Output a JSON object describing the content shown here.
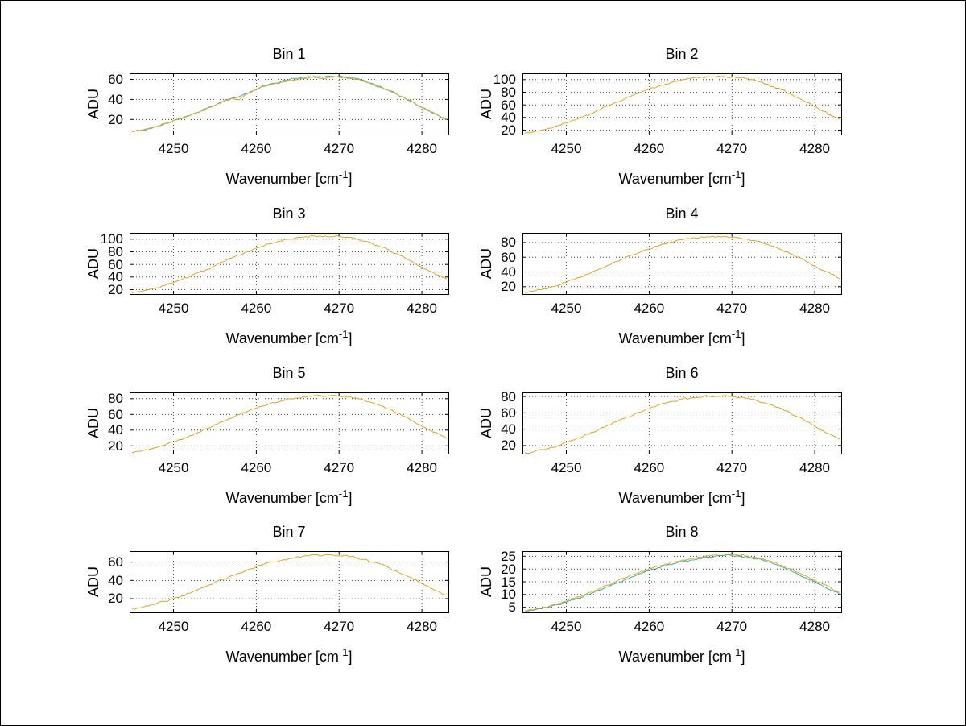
{
  "figure": {
    "background": "#ffffff",
    "rows": 4,
    "columns": 2,
    "ylabel": "ADU",
    "xlabel": {
      "pre": "Wavenumber [cm",
      "sup": "-1",
      "post": "]"
    },
    "colors": {
      "series_teal": "#33B3A6",
      "series_orange": "#E3A321",
      "axis": "#000000"
    }
  },
  "chart_data": [
    {
      "type": "line",
      "title": "Bin 1",
      "ylabel": "ADU",
      "xlim": [
        4244.7,
        4283.2
      ],
      "ylim": [
        5,
        66
      ],
      "xticks": [
        4250,
        4260,
        4270,
        4280
      ],
      "yticks": [
        20,
        40,
        60
      ],
      "x": [
        4245,
        4246,
        4247,
        4248,
        4249,
        4250,
        4251,
        4252,
        4253,
        4254,
        4255,
        4256,
        4257,
        4258,
        4259,
        4260,
        4261,
        4262,
        4263,
        4264,
        4265,
        4266,
        4267,
        4268,
        4269,
        4270,
        4271,
        4272,
        4273,
        4274,
        4275,
        4276,
        4277,
        4278,
        4279,
        4280,
        4281,
        4282,
        4283
      ],
      "series": [
        {
          "name": "series-teal",
          "color": "#33B3A6",
          "values": [
            8,
            9,
            11,
            13,
            16,
            19,
            21,
            24,
            27,
            31,
            34,
            38,
            41,
            43,
            46,
            50,
            54,
            56,
            58,
            60,
            61,
            62,
            63,
            62,
            63,
            63,
            62,
            61,
            59,
            56,
            53,
            49,
            45,
            41,
            37,
            32,
            28,
            24,
            20
          ]
        },
        {
          "name": "series-orange",
          "color": "#E3A321",
          "values": [
            8,
            9,
            11,
            13,
            16,
            19,
            21,
            24,
            27,
            31,
            34,
            38,
            41,
            40,
            46,
            50,
            53,
            55,
            57,
            59,
            60,
            61,
            62,
            61,
            62,
            62,
            61,
            60,
            58,
            55,
            52,
            49,
            45,
            41,
            37,
            32,
            28,
            24,
            20
          ]
        }
      ]
    },
    {
      "type": "line",
      "title": "Bin 2",
      "ylabel": "ADU",
      "xlim": [
        4244.7,
        4283.2
      ],
      "ylim": [
        13,
        110
      ],
      "xticks": [
        4250,
        4260,
        4270,
        4280
      ],
      "yticks": [
        20,
        40,
        60,
        80,
        100
      ],
      "x": [
        4245,
        4246,
        4247,
        4248,
        4249,
        4250,
        4251,
        4252,
        4253,
        4254,
        4255,
        4256,
        4257,
        4258,
        4259,
        4260,
        4261,
        4262,
        4263,
        4264,
        4265,
        4266,
        4267,
        4268,
        4269,
        4270,
        4271,
        4272,
        4273,
        4274,
        4275,
        4276,
        4277,
        4278,
        4279,
        4280,
        4281,
        4282,
        4283
      ],
      "series": [
        {
          "name": "series-orange",
          "color": "#E3A321",
          "values": [
            15,
            17,
            20,
            23,
            27,
            31,
            36,
            41,
            46,
            52,
            58,
            64,
            69,
            75,
            80,
            85,
            89,
            93,
            97,
            100,
            102,
            103,
            105,
            104,
            105,
            104,
            103,
            101,
            98,
            93,
            89,
            84,
            78,
            71,
            64,
            57,
            50,
            43,
            37
          ]
        }
      ]
    },
    {
      "type": "line",
      "title": "Bin 3",
      "ylabel": "ADU",
      "xlim": [
        4244.7,
        4283.2
      ],
      "ylim": [
        13,
        110
      ],
      "xticks": [
        4250,
        4260,
        4270,
        4280
      ],
      "yticks": [
        20,
        40,
        60,
        80,
        100
      ],
      "x": [
        4245,
        4246,
        4247,
        4248,
        4249,
        4250,
        4251,
        4252,
        4253,
        4254,
        4255,
        4256,
        4257,
        4258,
        4259,
        4260,
        4261,
        4262,
        4263,
        4264,
        4265,
        4266,
        4267,
        4268,
        4269,
        4270,
        4271,
        4272,
        4273,
        4274,
        4275,
        4276,
        4277,
        4278,
        4279,
        4280,
        4281,
        4282,
        4283
      ],
      "series": [
        {
          "name": "series-orange",
          "color": "#E3A321",
          "values": [
            15,
            17,
            20,
            23,
            27,
            31,
            36,
            41,
            47,
            52,
            58,
            64,
            70,
            75,
            80,
            86,
            90,
            94,
            97,
            100,
            103,
            104,
            105,
            104,
            104,
            105,
            103,
            101,
            97,
            93,
            88,
            83,
            77,
            70,
            63,
            56,
            49,
            43,
            37
          ]
        }
      ]
    },
    {
      "type": "line",
      "title": "Bin 4",
      "ylabel": "ADU",
      "xlim": [
        4244.7,
        4283.2
      ],
      "ylim": [
        10,
        93
      ],
      "xticks": [
        4250,
        4260,
        4270,
        4280
      ],
      "yticks": [
        20,
        40,
        60,
        80
      ],
      "x": [
        4245,
        4246,
        4247,
        4248,
        4249,
        4250,
        4251,
        4252,
        4253,
        4254,
        4255,
        4256,
        4257,
        4258,
        4259,
        4260,
        4261,
        4262,
        4263,
        4264,
        4265,
        4266,
        4267,
        4268,
        4269,
        4270,
        4271,
        4272,
        4273,
        4274,
        4275,
        4276,
        4277,
        4278,
        4279,
        4280,
        4281,
        4282,
        4283
      ],
      "series": [
        {
          "name": "series-orange",
          "color": "#E3A321",
          "values": [
            12,
            14,
            16,
            19,
            22,
            26,
            30,
            34,
            39,
            44,
            49,
            54,
            58,
            63,
            67,
            71,
            75,
            78,
            81,
            84,
            85,
            86,
            88,
            87,
            88,
            87,
            86,
            84,
            82,
            78,
            75,
            70,
            65,
            60,
            54,
            48,
            42,
            37,
            31
          ]
        }
      ]
    },
    {
      "type": "line",
      "title": "Bin 5",
      "ylabel": "ADU",
      "xlim": [
        4244.7,
        4283.2
      ],
      "ylim": [
        10,
        88
      ],
      "xticks": [
        4250,
        4260,
        4270,
        4280
      ],
      "yticks": [
        20,
        40,
        60,
        80
      ],
      "x": [
        4245,
        4246,
        4247,
        4248,
        4249,
        4250,
        4251,
        4252,
        4253,
        4254,
        4255,
        4256,
        4257,
        4258,
        4259,
        4260,
        4261,
        4262,
        4263,
        4264,
        4265,
        4266,
        4267,
        4268,
        4269,
        4270,
        4271,
        4272,
        4273,
        4274,
        4275,
        4276,
        4277,
        4278,
        4279,
        4280,
        4281,
        4282,
        4283
      ],
      "series": [
        {
          "name": "series-orange",
          "color": "#E3A321",
          "values": [
            11,
            13,
            15,
            18,
            21,
            25,
            28,
            33,
            37,
            42,
            47,
            51,
            55,
            60,
            64,
            68,
            71,
            75,
            77,
            80,
            81,
            82,
            84,
            83,
            84,
            83,
            82,
            81,
            78,
            75,
            71,
            67,
            62,
            57,
            51,
            45,
            40,
            35,
            29
          ]
        }
      ]
    },
    {
      "type": "line",
      "title": "Bin 6",
      "ylabel": "ADU",
      "xlim": [
        4244.7,
        4283.2
      ],
      "ylim": [
        10,
        85
      ],
      "xticks": [
        4250,
        4260,
        4270,
        4280
      ],
      "yticks": [
        20,
        40,
        60,
        80
      ],
      "x": [
        4245,
        4246,
        4247,
        4248,
        4249,
        4250,
        4251,
        4252,
        4253,
        4254,
        4255,
        4256,
        4257,
        4258,
        4259,
        4260,
        4261,
        4262,
        4263,
        4264,
        4265,
        4266,
        4267,
        4268,
        4269,
        4270,
        4271,
        4272,
        4273,
        4274,
        4275,
        4276,
        4277,
        4278,
        4279,
        4280,
        4281,
        4282,
        4283
      ],
      "series": [
        {
          "name": "series-orange",
          "color": "#E3A321",
          "values": [
            11,
            12,
            15,
            17,
            20,
            24,
            27,
            31,
            36,
            40,
            45,
            49,
            53,
            57,
            61,
            65,
            69,
            72,
            74,
            77,
            78,
            79,
            81,
            80,
            81,
            80,
            79,
            78,
            75,
            72,
            69,
            65,
            60,
            55,
            49,
            44,
            38,
            33,
            28
          ]
        }
      ]
    },
    {
      "type": "line",
      "title": "Bin 7",
      "ylabel": "ADU",
      "xlim": [
        4244.7,
        4283.2
      ],
      "ylim": [
        5,
        72
      ],
      "xticks": [
        4250,
        4260,
        4270,
        4280
      ],
      "yticks": [
        20,
        40,
        60
      ],
      "x": [
        4245,
        4246,
        4247,
        4248,
        4249,
        4250,
        4251,
        4252,
        4253,
        4254,
        4255,
        4256,
        4257,
        4258,
        4259,
        4260,
        4261,
        4262,
        4263,
        4264,
        4265,
        4266,
        4267,
        4268,
        4269,
        4270,
        4271,
        4272,
        4273,
        4274,
        4275,
        4276,
        4277,
        4278,
        4279,
        4280,
        4281,
        4282,
        4283
      ],
      "series": [
        {
          "name": "series-orange",
          "color": "#E3A321",
          "values": [
            9,
            10,
            12,
            15,
            17,
            20,
            23,
            26,
            30,
            34,
            38,
            41,
            45,
            48,
            52,
            55,
            58,
            60,
            62,
            64,
            66,
            67,
            68,
            67,
            68,
            67,
            67,
            65,
            63,
            60,
            58,
            54,
            50,
            46,
            41,
            37,
            32,
            28,
            24
          ]
        }
      ]
    },
    {
      "type": "line",
      "title": "Bin 8",
      "ylabel": "ADU",
      "xlim": [
        4244.7,
        4283.2
      ],
      "ylim": [
        3,
        27
      ],
      "xticks": [
        4250,
        4260,
        4270,
        4280
      ],
      "yticks": [
        5,
        10,
        15,
        20,
        25
      ],
      "x": [
        4245,
        4246,
        4247,
        4248,
        4249,
        4250,
        4251,
        4252,
        4253,
        4254,
        4255,
        4256,
        4257,
        4258,
        4259,
        4260,
        4261,
        4262,
        4263,
        4264,
        4265,
        4266,
        4267,
        4268,
        4269,
        4270,
        4271,
        4272,
        4273,
        4274,
        4275,
        4276,
        4277,
        4278,
        4279,
        4280,
        4281,
        4282,
        4283
      ],
      "series": [
        {
          "name": "series-teal",
          "color": "#33B3A6",
          "values": [
            3.3,
            3.8,
            4.4,
            5.2,
            6,
            7,
            8,
            9.1,
            10.4,
            11.7,
            13,
            14.4,
            15.7,
            17,
            18.2,
            19.4,
            20.4,
            21.3,
            22.1,
            22.9,
            23.5,
            24.1,
            24.6,
            25,
            25.3,
            25.2,
            25,
            24.6,
            24,
            23.1,
            22,
            20.8,
            19.5,
            18,
            16.5,
            14.9,
            13.3,
            11.7,
            10.1
          ]
        },
        {
          "name": "series-orange",
          "color": "#E3A321",
          "values": [
            3.5,
            4,
            4.7,
            5.5,
            6.4,
            7.4,
            8.5,
            9.7,
            11,
            12.3,
            13.7,
            15.1,
            16.4,
            17.7,
            19,
            20.1,
            21.1,
            22,
            22.8,
            23.5,
            24.2,
            24.7,
            25.2,
            25.5,
            25.8,
            25.6,
            25.4,
            25,
            24.4,
            23.6,
            22.6,
            21.4,
            20.1,
            18.7,
            17.2,
            15.6,
            14,
            12.4,
            10.8
          ]
        }
      ]
    }
  ]
}
